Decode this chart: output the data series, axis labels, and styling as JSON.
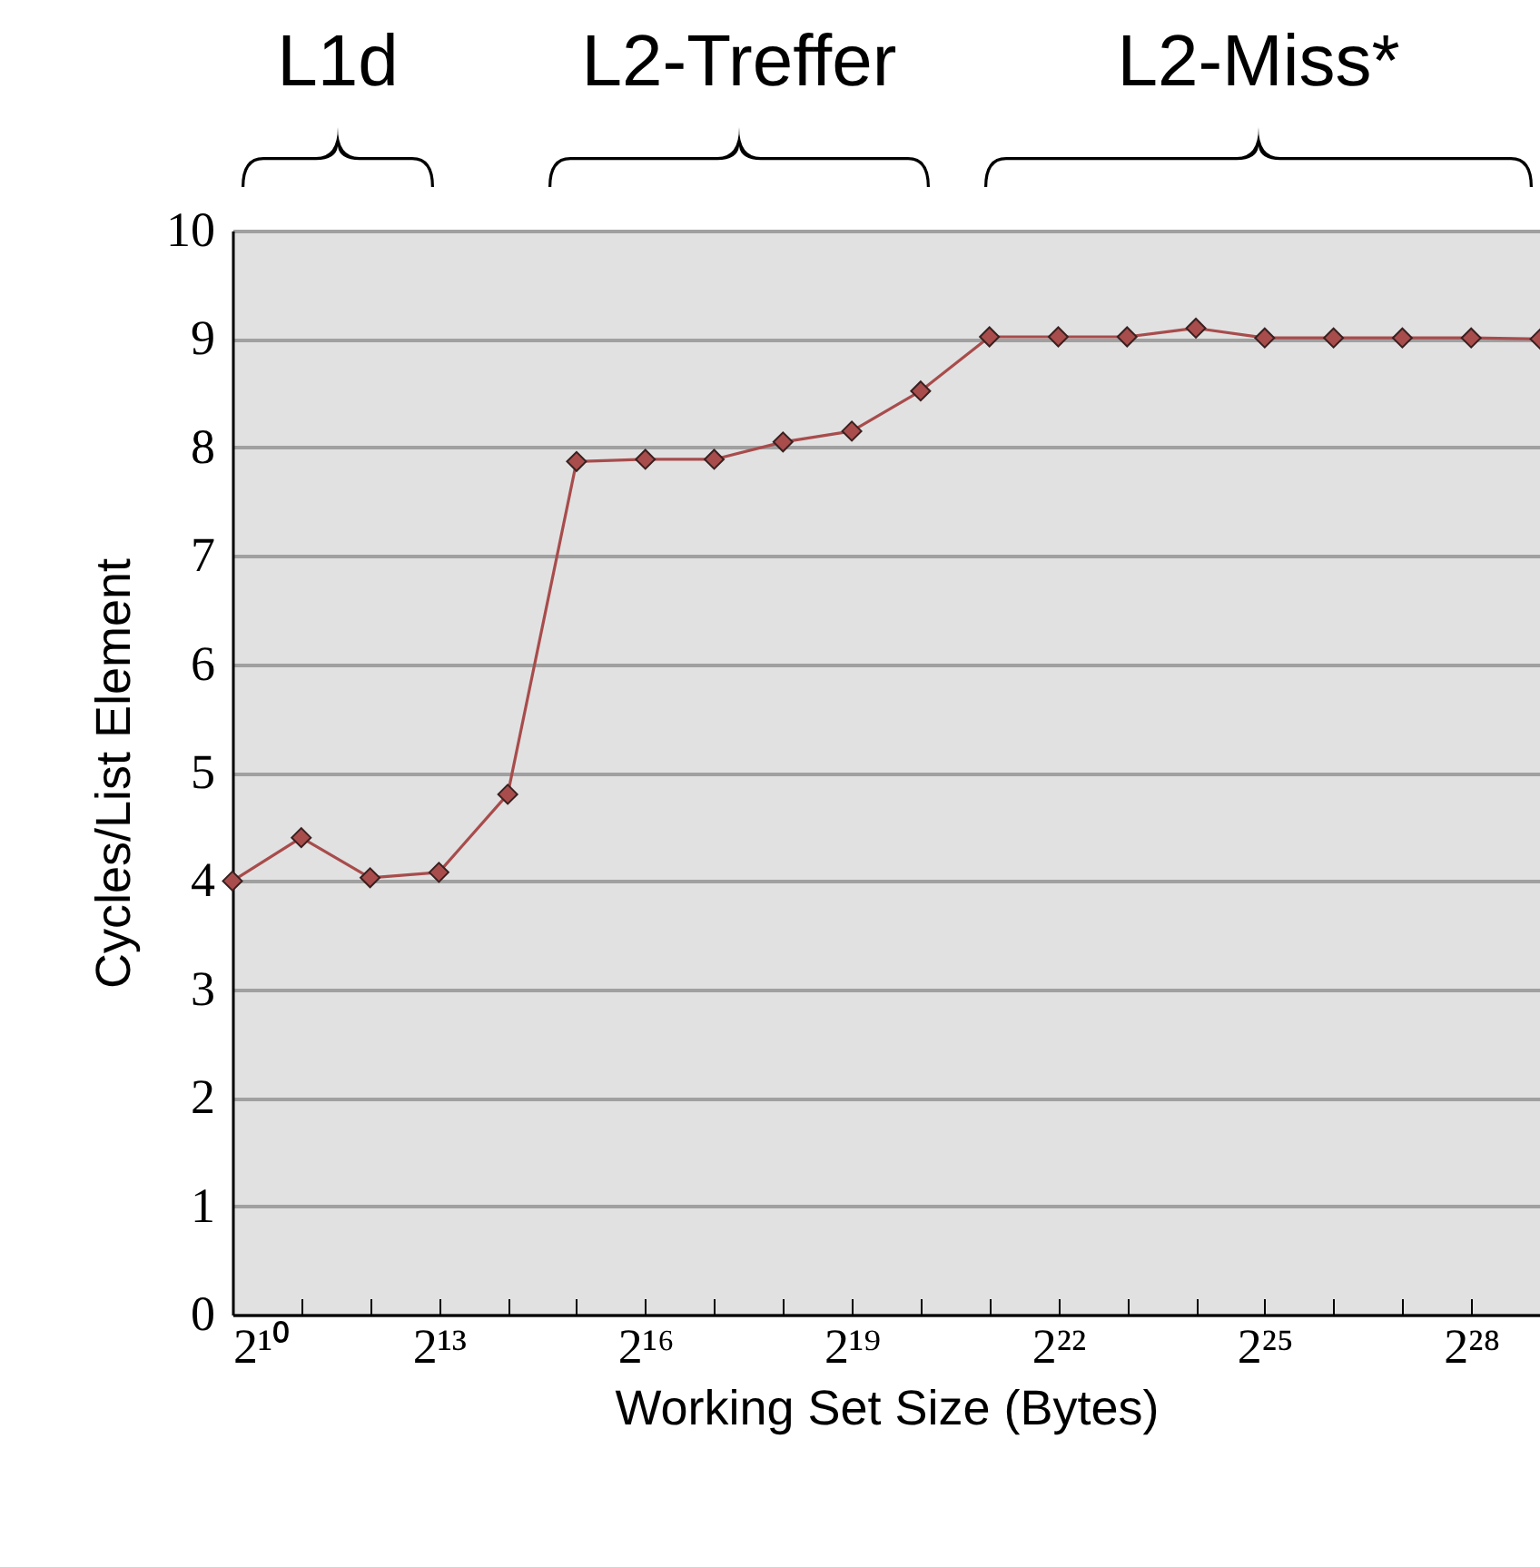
{
  "chart_data": {
    "type": "line",
    "xlabel": "Working Set Size (Bytes)",
    "ylabel": "Cycles/List Element",
    "x": [
      1024,
      2048,
      4096,
      8192,
      16384,
      32768,
      65536,
      131072,
      262144,
      524288,
      1048576,
      2097152,
      4194304,
      8388608,
      16777216,
      33554432,
      67108864,
      134217728,
      268435456,
      536870912
    ],
    "series": [
      {
        "color": "#a84c4c",
        "values": [
          4.0,
          4.4,
          4.03,
          4.08,
          4.8,
          7.87,
          7.89,
          7.89,
          8.05,
          8.15,
          8.52,
          9.02,
          9.02,
          9.02,
          9.1,
          9.01,
          9.01,
          9.01,
          9.01,
          9.0
        ]
      }
    ],
    "log": "x",
    "xlim": [
      1024,
      536870912
    ],
    "xticks": [
      {
        "value": 1024,
        "label": "2¹⁰"
      },
      {
        "value": 2048,
        "label": null
      },
      {
        "value": 4096,
        "label": null
      },
      {
        "value": 8192,
        "label": "2¹³"
      },
      {
        "value": 16384,
        "label": null
      },
      {
        "value": 32768,
        "label": null
      },
      {
        "value": 65536,
        "label": "2¹⁶"
      },
      {
        "value": 131072,
        "label": null
      },
      {
        "value": 262144,
        "label": null
      },
      {
        "value": 524288,
        "label": "2¹⁹"
      },
      {
        "value": 1048576,
        "label": null
      },
      {
        "value": 2097152,
        "label": null
      },
      {
        "value": 4194304,
        "label": "2²²"
      },
      {
        "value": 8388608,
        "label": null
      },
      {
        "value": 16777216,
        "label": null
      },
      {
        "value": 33554432,
        "label": "2²⁵"
      },
      {
        "value": 67108864,
        "label": null
      },
      {
        "value": 134217728,
        "label": null
      },
      {
        "value": 268435456,
        "label": "2²⁸"
      },
      {
        "value": 536870912,
        "label": null
      }
    ],
    "ylim": [
      0,
      10
    ],
    "yticks": [
      0,
      1,
      2,
      3,
      4,
      5,
      6,
      7,
      8,
      9,
      10
    ],
    "grid": "y",
    "marker": "diamond",
    "line_style": "solid",
    "annotations": [
      "L1d",
      "L2-Treffer",
      "L2-Miss*"
    ]
  }
}
